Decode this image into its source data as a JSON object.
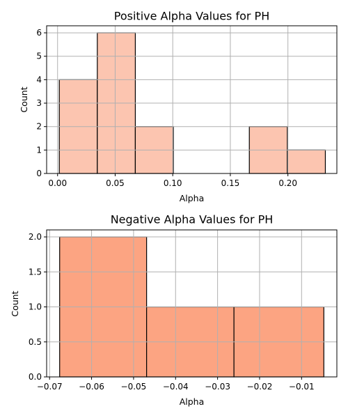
{
  "chart_data": [
    {
      "type": "bar",
      "title": "Positive Alpha Values for PH",
      "xlabel": "Alpha",
      "ylabel": "Count",
      "xlim": [
        -0.0095,
        0.2425
      ],
      "ylim": [
        0,
        6.3
      ],
      "xticks": [
        0.0,
        0.05,
        0.1,
        0.15,
        0.2
      ],
      "xtick_labels": [
        "0.00",
        "0.05",
        "0.10",
        "0.15",
        "0.20"
      ],
      "yticks": [
        0,
        1,
        2,
        3,
        4,
        5,
        6
      ],
      "ytick_labels": [
        "0",
        "1",
        "2",
        "3",
        "4",
        "5",
        "6"
      ],
      "bins": [
        {
          "x0": 0.0015,
          "x1": 0.0345,
          "count": 4
        },
        {
          "x0": 0.0345,
          "x1": 0.0675,
          "count": 6
        },
        {
          "x0": 0.0675,
          "x1": 0.1005,
          "count": 2
        },
        {
          "x0": 0.1005,
          "x1": 0.1335,
          "count": 0
        },
        {
          "x0": 0.1335,
          "x1": 0.1665,
          "count": 0
        },
        {
          "x0": 0.1665,
          "x1": 0.1995,
          "count": 2
        },
        {
          "x0": 0.1995,
          "x1": 0.2325,
          "count": 1
        }
      ],
      "bar_color": "#fcc5b0",
      "edge_color": "#000000",
      "grid": true
    },
    {
      "type": "bar",
      "title": "Negative Alpha Values for PH",
      "xlabel": "Alpha",
      "ylabel": "Count",
      "xlim": [
        -0.0707,
        -0.0016
      ],
      "ylim": [
        0,
        2.1
      ],
      "xticks": [
        -0.07,
        -0.06,
        -0.05,
        -0.04,
        -0.03,
        -0.02,
        -0.01
      ],
      "xtick_labels": [
        "−0.07",
        "−0.06",
        "−0.05",
        "−0.04",
        "−0.03",
        "−0.02",
        "−0.01"
      ],
      "yticks": [
        0,
        0.5,
        1.0,
        1.5,
        2.0
      ],
      "ytick_labels": [
        "0.0",
        "0.5",
        "1.0",
        "1.5",
        "2.0"
      ],
      "bins": [
        {
          "x0": -0.0676,
          "x1": -0.0469,
          "count": 2
        },
        {
          "x0": -0.0469,
          "x1": -0.0261,
          "count": 1
        },
        {
          "x0": -0.0261,
          "x1": -0.0047,
          "count": 1
        }
      ],
      "bar_color": "#fca482",
      "edge_color": "#000000",
      "grid": true
    }
  ]
}
